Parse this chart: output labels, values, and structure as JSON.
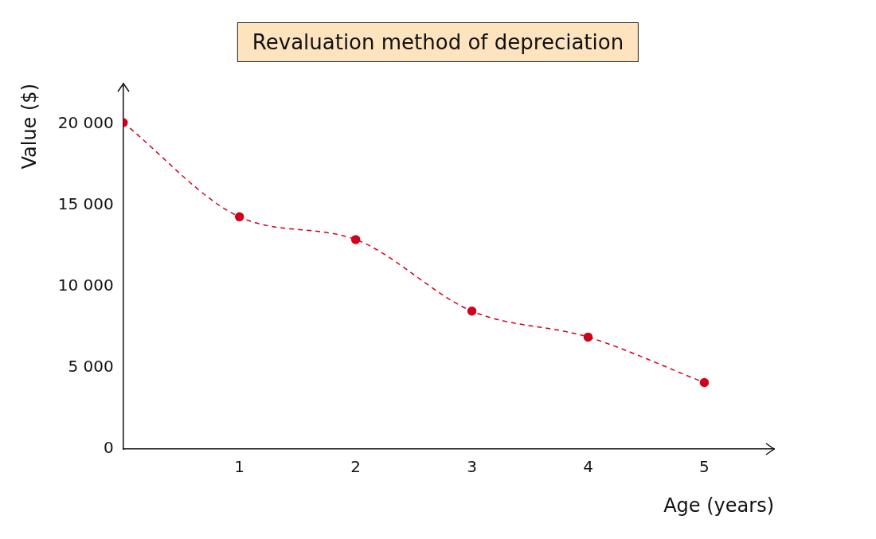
{
  "chart_data": {
    "type": "line",
    "title": "Revaluation method of depreciation",
    "xlabel": "Age (years)",
    "ylabel": "Value ($)",
    "x": [
      0,
      1,
      2,
      3,
      4,
      5
    ],
    "series": [
      {
        "color": "#d0021b",
        "values": [
          20100,
          14300,
          12900,
          8500,
          6900,
          4100
        ]
      }
    ],
    "xlim": [
      0,
      5.6
    ],
    "xticks": [
      1,
      2,
      3,
      4,
      5
    ],
    "ylim": [
      0,
      22500
    ],
    "yticks": [
      {
        "value": 0,
        "label": "0"
      },
      {
        "value": 5000,
        "label": "5 000"
      },
      {
        "value": 10000,
        "label": "10 000"
      },
      {
        "value": 15000,
        "label": "15 000"
      },
      {
        "value": 20000,
        "label": "20 000"
      }
    ],
    "grid": false,
    "legend": false,
    "marker": "circle",
    "line_style": "dashed"
  }
}
